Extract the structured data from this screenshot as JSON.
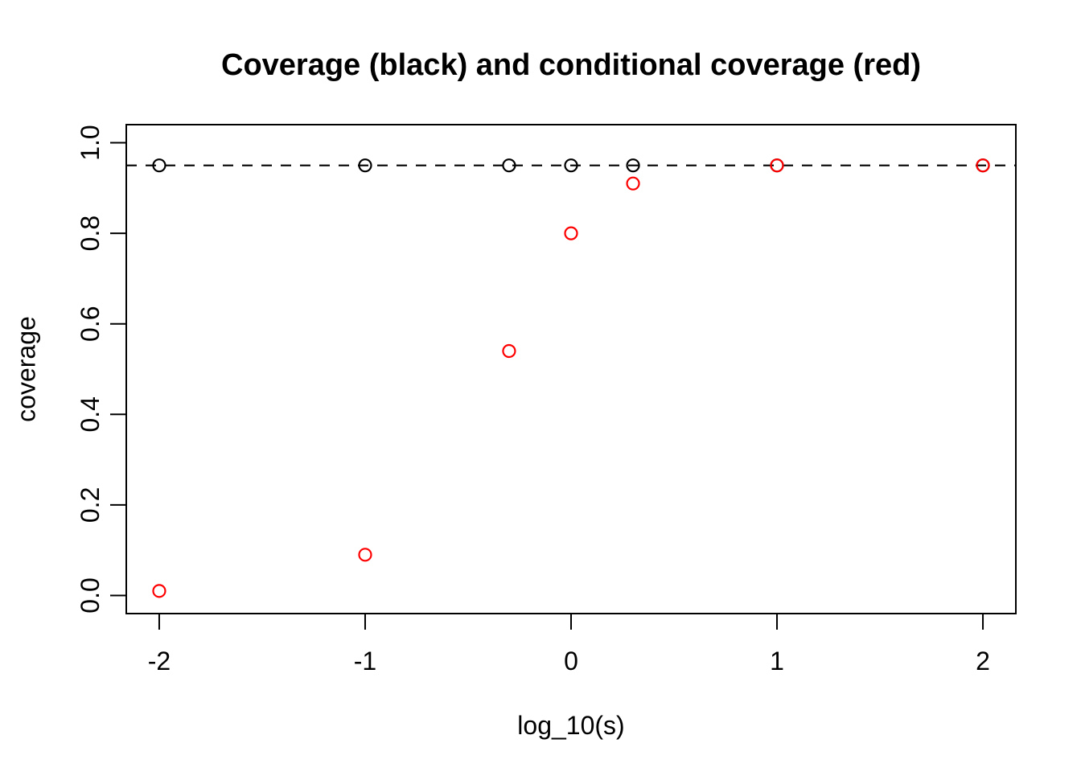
{
  "page": {
    "background_color": "#FFFFFF",
    "foreground_color": "#000000",
    "accent_color": "#FF0000"
  },
  "chart_data": {
    "type": "scatter",
    "title": "Coverage (black) and conditional coverage (red)",
    "xlabel": "log_10(s)",
    "ylabel": "coverage",
    "x": [
      -2,
      -1,
      -0.301,
      0,
      0.301,
      1,
      2
    ],
    "series": [
      {
        "id": "coverage",
        "name": "Coverage (black)",
        "color": "#000000",
        "marker": "open-circle",
        "values": [
          0.95,
          0.95,
          0.95,
          0.95,
          0.95,
          0.95,
          0.95
        ]
      },
      {
        "id": "conditional-coverage",
        "name": "Conditional coverage (red)",
        "color": "#FF0000",
        "marker": "open-circle",
        "values": [
          0.01,
          0.09,
          0.54,
          0.8,
          0.91,
          0.95,
          0.95
        ]
      }
    ],
    "reference_line": {
      "y": 0.95,
      "style": "dashed",
      "color": "#000000"
    },
    "x_ticks": {
      "values": [
        -2,
        -1,
        0,
        1,
        2
      ],
      "labels": [
        "-2",
        "-1",
        "0",
        "1",
        "2"
      ]
    },
    "y_ticks": {
      "values": [
        0.0,
        0.2,
        0.4,
        0.6,
        0.8,
        1.0
      ],
      "labels": [
        "0.0",
        "0.2",
        "0.4",
        "0.6",
        "0.8",
        "1.0"
      ]
    },
    "xlim": [
      -2.16,
      2.16
    ],
    "ylim": [
      -0.04,
      1.04
    ],
    "grid": false,
    "legend": "none"
  }
}
